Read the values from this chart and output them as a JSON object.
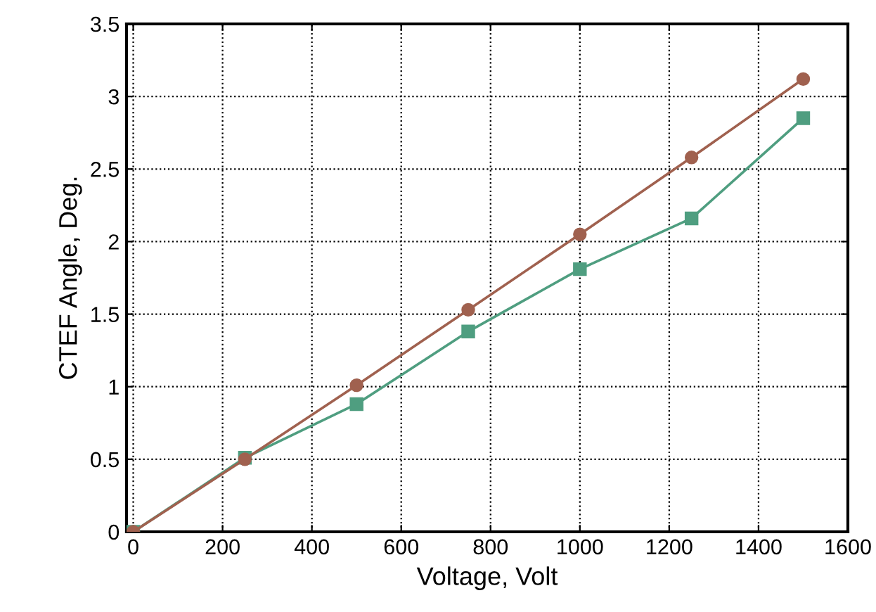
{
  "chart_data": {
    "type": "line",
    "xlabel": "Voltage, Volt",
    "ylabel": "CTEF Angle, Deg.",
    "x": [
      0,
      250,
      500,
      750,
      1000,
      1250,
      1500
    ],
    "series": [
      {
        "color": "#a0614f",
        "marker": "circle",
        "values": [
          0,
          0.5,
          1.01,
          1.53,
          2.05,
          2.58,
          3.12
        ]
      },
      {
        "color": "#4f9e80",
        "marker": "square",
        "values": [
          0,
          0.51,
          0.88,
          1.38,
          1.81,
          2.16,
          2.85
        ]
      }
    ],
    "xlim": [
      -15,
      1600
    ],
    "xticks": [
      0,
      200,
      400,
      600,
      800,
      1000,
      1200,
      1400,
      1600
    ],
    "ylim": [
      0,
      3.5
    ],
    "yticks": [
      0,
      0.5,
      1,
      1.5,
      2,
      2.5,
      3,
      3.5
    ],
    "grid": true,
    "line_style": "solid"
  }
}
